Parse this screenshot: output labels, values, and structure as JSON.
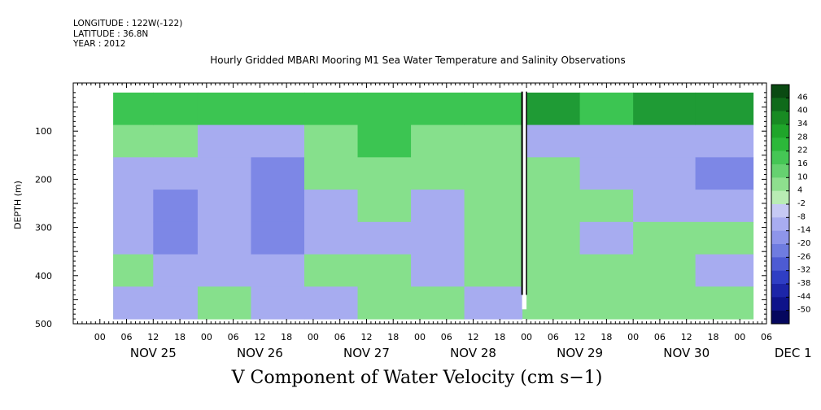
{
  "meta": {
    "longitude": "LONGITUDE : 122W(-122)",
    "latitude": "LATITUDE : 36.8N",
    "year": "YEAR : 2012"
  },
  "chart_data": {
    "type": "heatmap",
    "title": "Hourly Gridded MBARI Mooring M1 Sea Water Temperature and Salinity Observations",
    "xlabel": "V Component of Water Velocity (cm s−1)",
    "ylabel": "DEPTH (m)",
    "ylim": [
      500,
      0
    ],
    "x_range_hours": [
      -6,
      150
    ],
    "data_start_hour": 3,
    "data_end_hour": 147,
    "y_ticks": [
      100,
      200,
      300,
      400,
      500
    ],
    "x_hour_tick_labels": [
      "00",
      "06",
      "12",
      "18",
      "00",
      "06",
      "12",
      "18",
      "00",
      "06",
      "12",
      "18",
      "00",
      "06",
      "12",
      "18",
      "00",
      "06",
      "12",
      "18",
      "00",
      "06",
      "12",
      "18",
      "00",
      "06"
    ],
    "x_hour_tick_values": [
      0,
      6,
      12,
      18,
      24,
      30,
      36,
      42,
      48,
      54,
      60,
      66,
      72,
      78,
      84,
      90,
      96,
      102,
      108,
      114,
      120,
      126,
      132,
      138,
      144,
      150
    ],
    "date_labels": [
      {
        "text": "NOV 25",
        "hour": 0
      },
      {
        "text": "NOV 26",
        "hour": 24
      },
      {
        "text": "NOV 27",
        "hour": 48
      },
      {
        "text": "NOV 28",
        "hour": 72
      },
      {
        "text": "NOV 29",
        "hour": 96
      },
      {
        "text": "NOV 30",
        "hour": 120
      },
      {
        "text": "DEC  1",
        "hour": 144
      }
    ],
    "colorbar_labels": [
      "46",
      "40",
      "34",
      "28",
      "22",
      "16",
      "10",
      "4",
      "-2",
      "-8",
      "-14",
      "-20",
      "-26",
      "-32",
      "-38",
      "-44",
      "-50"
    ],
    "colorbar_colors": [
      "#0a4a12",
      "#0f6a1a",
      "#188a22",
      "#1fa52a",
      "#2cb83a",
      "#45c655",
      "#66d170",
      "#8edf8e",
      "#b9ecb4",
      "#c6c9f4",
      "#a8acf0",
      "#8e95ea",
      "#6f7ce0",
      "#4d5bd3",
      "#2f3ec4",
      "#1c25a8",
      "#0e138a",
      "#05075e"
    ],
    "bands": [
      {
        "hours": [
          3,
          12
        ],
        "profile": [
          "green",
          "lightgreen",
          "lightblue",
          "lightblue",
          "lightblue",
          "lightgreen",
          "lightblue"
        ]
      },
      {
        "hours": [
          12,
          22
        ],
        "profile": [
          "green",
          "lightgreen",
          "lightblue",
          "blue",
          "blue",
          "lightblue",
          "lightblue"
        ]
      },
      {
        "hours": [
          22,
          34
        ],
        "profile": [
          "green",
          "lightblue",
          "lightblue",
          "lightblue",
          "lightblue",
          "lightblue",
          "lightgreen"
        ]
      },
      {
        "hours": [
          34,
          46
        ],
        "profile": [
          "green",
          "lightblue",
          "blue",
          "blue",
          "blue",
          "lightblue",
          "lightblue"
        ]
      },
      {
        "hours": [
          46,
          58
        ],
        "profile": [
          "green",
          "lightgreen",
          "lightgreen",
          "lightblue",
          "lightblue",
          "lightgreen",
          "lightblue"
        ]
      },
      {
        "hours": [
          58,
          70
        ],
        "profile": [
          "green",
          "green",
          "lightgreen",
          "lightgreen",
          "lightblue",
          "lightgreen",
          "lightgreen"
        ]
      },
      {
        "hours": [
          70,
          82
        ],
        "profile": [
          "green",
          "lightgreen",
          "lightgreen",
          "lightblue",
          "lightblue",
          "lightblue",
          "lightgreen"
        ]
      },
      {
        "hours": [
          82,
          95
        ],
        "profile": [
          "green",
          "lightgreen",
          "lightgreen",
          "lightgreen",
          "lightgreen",
          "lightgreen",
          "lightblue"
        ]
      },
      {
        "hours": [
          96,
          108
        ],
        "profile": [
          "darkgreen",
          "lightblue",
          "lightgreen",
          "lightgreen",
          "lightgreen",
          "lightgreen",
          "lightgreen"
        ]
      },
      {
        "hours": [
          108,
          120
        ],
        "profile": [
          "green",
          "lightblue",
          "lightblue",
          "lightgreen",
          "lightblue",
          "lightgreen",
          "lightgreen"
        ]
      },
      {
        "hours": [
          120,
          134
        ],
        "profile": [
          "darkgreen",
          "lightblue",
          "lightblue",
          "lightblue",
          "lightgreen",
          "lightgreen",
          "lightgreen"
        ]
      },
      {
        "hours": [
          134,
          147
        ],
        "profile": [
          "darkgreen",
          "lightblue",
          "blue",
          "lightblue",
          "lightgreen",
          "lightblue",
          "lightgreen"
        ]
      }
    ],
    "data_gap_hours": [
      95,
      96
    ]
  }
}
